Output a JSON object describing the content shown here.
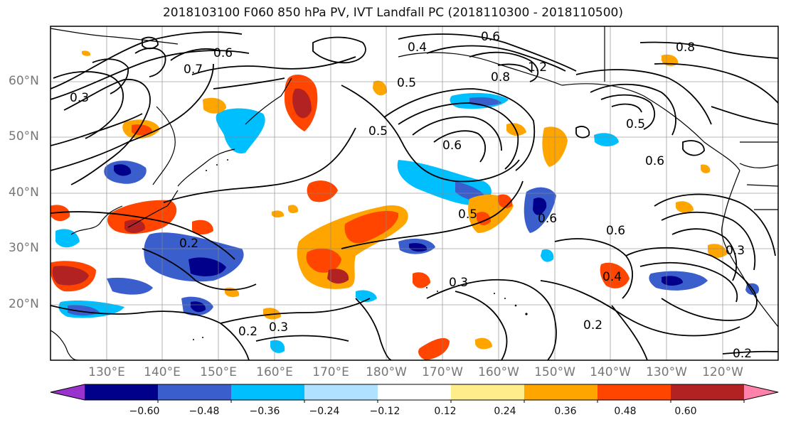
{
  "title": "2018103100 F060 850 hPa PV, IVT Landfall PC (2018110300 - 2018110500)",
  "lat_labels": [
    "60°N",
    "50°N",
    "40°N",
    "30°N",
    "20°N"
  ],
  "lon_labels": [
    "130°E",
    "140°E",
    "150°E",
    "160°E",
    "170°E",
    "180°W",
    "170°W",
    "160°W",
    "150°W",
    "140°W",
    "130°W",
    "120°W"
  ],
  "colorbar": {
    "ticks": [
      "−0.60",
      "−0.48",
      "−0.36",
      "−0.24",
      "−0.12",
      "0.12",
      "0.24",
      "0.36",
      "0.48",
      "0.60"
    ],
    "colors": [
      "#9a32cd",
      "#00008b",
      "#3a5fcd",
      "#00bfff",
      "#b0e2ff",
      "#ffffff",
      "#ffec8b",
      "#ffa500",
      "#ff4500",
      "#b22222",
      "#ff82ab"
    ]
  },
  "contour_labels": [
    "0.6",
    "0.5",
    "0.8",
    "0.4",
    "1.2",
    "0.7",
    "0.3",
    "0.6",
    "0.8",
    "0.5",
    "0.6",
    "0.2",
    "0.3",
    "0.2",
    "0.3",
    "0.5",
    "0.6",
    "0.2",
    "0.5",
    "0.4",
    "0.6",
    "0.3",
    "0.2",
    "0.6"
  ]
}
